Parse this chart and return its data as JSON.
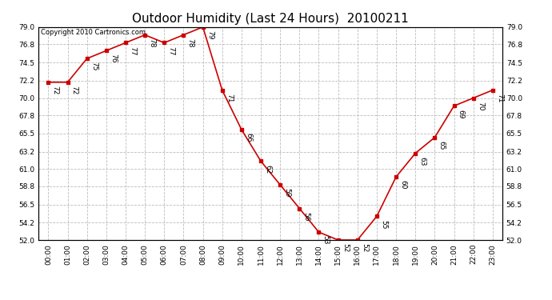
{
  "title": "Outdoor Humidity (Last 24 Hours)  20100211",
  "copyright_text": "Copyright 2010 Cartronics.com",
  "hours": [
    0,
    1,
    2,
    3,
    4,
    5,
    6,
    7,
    8,
    9,
    10,
    11,
    12,
    13,
    14,
    15,
    16,
    17,
    18,
    19,
    20,
    21,
    22,
    23
  ],
  "humidity": [
    72,
    72,
    75,
    76,
    77,
    78,
    77,
    78,
    79,
    71,
    66,
    62,
    59,
    56,
    53,
    52,
    52,
    55,
    60,
    63,
    65,
    69,
    70,
    71
  ],
  "ylim": [
    52.0,
    79.0
  ],
  "yticks": [
    52.0,
    54.2,
    56.5,
    58.8,
    61.0,
    63.2,
    65.5,
    67.8,
    70.0,
    72.2,
    74.5,
    76.8,
    79.0
  ],
  "line_color": "#cc0000",
  "marker_color": "#cc0000",
  "bg_color": "#ffffff",
  "grid_color": "#bbbbbb",
  "title_fontsize": 11,
  "label_fontsize": 6.5,
  "tick_fontsize": 6.5,
  "copyright_fontsize": 6
}
